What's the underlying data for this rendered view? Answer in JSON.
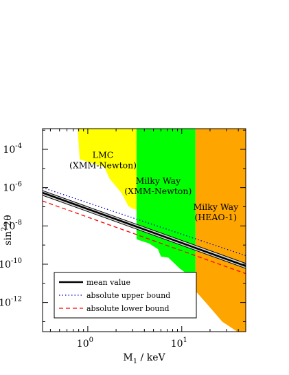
{
  "chart_data": {
    "type": "line",
    "xlabel": "M",
    "xlabel_sub": "1",
    "xlabel_unit": " / keV",
    "ylabel": "sin",
    "ylabel_sup": "2",
    "ylabel_rest": "2θ",
    "x_scale": "log",
    "y_scale": "log",
    "xlim": [
      0.33,
      48
    ],
    "ylim": [
      3e-14,
      0.0012
    ],
    "x_ticks": [
      {
        "value": 1,
        "base": "10",
        "exp": "0"
      },
      {
        "value": 10,
        "base": "10",
        "exp": "1"
      }
    ],
    "y_ticks": [
      {
        "value": 0.0001,
        "base": "10",
        "exp": "-4"
      },
      {
        "value": 1e-06,
        "base": "10",
        "exp": "-6"
      },
      {
        "value": 1e-08,
        "base": "10",
        "exp": "-8"
      },
      {
        "value": 1e-10,
        "base": "10",
        "exp": "-10"
      },
      {
        "value": 1e-12,
        "base": "10",
        "exp": "-12"
      }
    ],
    "regions": [
      {
        "name": "LMC (XMM-Newton)",
        "label_lines": [
          "LMC",
          "(XMM-Newton)"
        ],
        "label_at": {
          "x": 1.45,
          "y": 3.5e-05
        },
        "color": "#ffff00",
        "boundary": [
          {
            "x": 0.33,
            "y": 0.0012
          },
          {
            "x": 0.78,
            "y": 0.0012
          },
          {
            "x": 0.82,
            "y": 3e-05
          },
          {
            "x": 1.5,
            "y": 1.2e-05
          },
          {
            "x": 1.7,
            "y": 3e-06
          },
          {
            "x": 2.3,
            "y": 5e-07
          },
          {
            "x": 2.7,
            "y": 1.1e-07
          },
          {
            "x": 3.0,
            "y": 8e-08
          },
          {
            "x": 3.3,
            "y": 7e-08
          },
          {
            "x": 3.3,
            "y": 0.0012
          }
        ]
      },
      {
        "name": "Milky Way (XMM-Newton)",
        "label_lines": [
          "Milky Way",
          "(XMM-Newton)"
        ],
        "label_at": {
          "x": 5.6,
          "y": 1.6e-06
        },
        "color": "#00ff00",
        "boundary": [
          {
            "x": 3.3,
            "y": 0.0012
          },
          {
            "x": 14,
            "y": 0.0012
          },
          {
            "x": 14,
            "y": 3e-11
          },
          {
            "x": 11.5,
            "y": 3e-11
          },
          {
            "x": 9.5,
            "y": 6e-11
          },
          {
            "x": 7.2,
            "y": 2.2e-10
          },
          {
            "x": 6.0,
            "y": 2.5e-10
          },
          {
            "x": 5.6,
            "y": 6e-10
          },
          {
            "x": 4.5,
            "y": 1.2e-09
          },
          {
            "x": 3.3,
            "y": 2e-09
          }
        ]
      },
      {
        "name": "Milky Way (HEAO-1)",
        "label_lines": [
          "Milky Way",
          "(HEAO-1)"
        ],
        "label_at": {
          "x": 23,
          "y": 7e-08
        },
        "color": "#ffa500",
        "boundary": [
          {
            "x": 14,
            "y": 0.0012
          },
          {
            "x": 48,
            "y": 0.0012
          },
          {
            "x": 48,
            "y": 3e-14
          },
          {
            "x": 39,
            "y": 3e-14
          },
          {
            "x": 27,
            "y": 1e-13
          },
          {
            "x": 18,
            "y": 1e-12
          },
          {
            "x": 14,
            "y": 4e-12
          }
        ]
      }
    ],
    "band": {
      "name": "uncertainty band",
      "color": "#d8d8d8",
      "upper": [
        {
          "x": 0.33,
          "y": 7e-07
        },
        {
          "x": 48,
          "y": 1.1e-10
        }
      ],
      "lower": [
        {
          "x": 0.33,
          "y": 4e-07
        },
        {
          "x": 48,
          "y": 6e-11
        }
      ]
    },
    "series": [
      {
        "name": "mean value",
        "style": "solid",
        "color": "#000000",
        "points": [
          {
            "x": 0.33,
            "y": 5.4e-07
          },
          {
            "x": 48,
            "y": 8e-11
          }
        ]
      },
      {
        "name": "absolute upper bound",
        "style": "dotted",
        "color": "#0000cc",
        "points": [
          {
            "x": 0.33,
            "y": 1e-06
          },
          {
            "x": 48,
            "y": 2.8e-10
          }
        ]
      },
      {
        "name": "absolute lower bound",
        "style": "dashed",
        "color": "#ff0000",
        "points": [
          {
            "x": 0.33,
            "y": 2e-07
          },
          {
            "x": 48,
            "y": 3.2e-11
          }
        ]
      }
    ],
    "legend_position": "bottom-left"
  }
}
